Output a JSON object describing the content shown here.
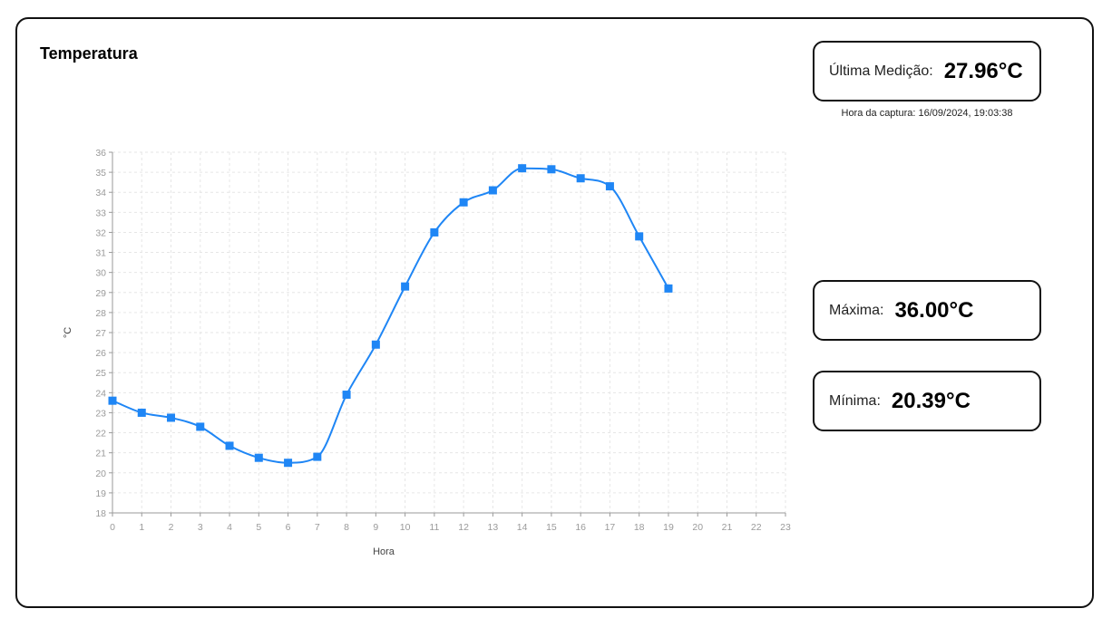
{
  "title": "Temperatura",
  "stats": {
    "last": {
      "label": "Última Medição:",
      "value": "27.96°C"
    },
    "capture": {
      "label": "Hora da captura:",
      "timestamp": "16/09/2024, 19:03:38",
      "text": "Hora da captura: 16/09/2024, 19:03:38"
    },
    "max": {
      "label": "Máxima:",
      "value": "36.00°C"
    },
    "min": {
      "label": "Mínima:",
      "value": "20.39°C"
    }
  },
  "colors": {
    "series": "#1f86f5",
    "grid": "#e6e6e6",
    "axis": "#9a9a9a"
  },
  "chart_data": {
    "type": "line",
    "title": "Temperatura",
    "xlabel": "Hora",
    "ylabel": "°C",
    "xlim": [
      0,
      23
    ],
    "ylim": [
      18,
      36
    ],
    "xticks": [
      0,
      1,
      2,
      3,
      4,
      5,
      6,
      7,
      8,
      9,
      10,
      11,
      12,
      13,
      14,
      15,
      16,
      17,
      18,
      19,
      20,
      21,
      22,
      23
    ],
    "yticks": [
      18,
      19,
      20,
      21,
      22,
      23,
      24,
      25,
      26,
      27,
      28,
      29,
      30,
      31,
      32,
      33,
      34,
      35,
      36
    ],
    "grid": true,
    "series": [
      {
        "name": "Temperatura",
        "x": [
          0,
          1,
          2,
          3,
          4,
          5,
          6,
          7,
          8,
          9,
          10,
          11,
          12,
          13,
          14,
          15,
          16,
          17,
          18,
          19
        ],
        "values": [
          23.6,
          23.0,
          22.75,
          22.3,
          21.35,
          20.75,
          20.5,
          20.8,
          23.9,
          26.4,
          29.3,
          32.0,
          33.5,
          34.1,
          35.2,
          35.15,
          34.7,
          34.3,
          31.8,
          29.2
        ]
      }
    ]
  }
}
